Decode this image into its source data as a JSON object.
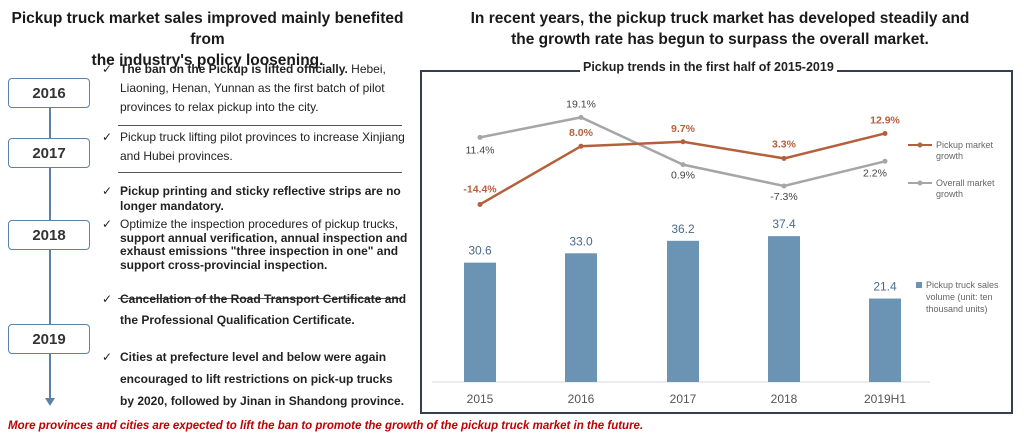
{
  "left_title": [
    "Pickup truck market sales improved mainly benefited from",
    "the industry's policy loosening."
  ],
  "right_title": [
    "In recent years, the pickup truck market has developed steadily and",
    "the growth rate has begun to surpass the overall market."
  ],
  "years": [
    "2016",
    "2017",
    "2018",
    "2019"
  ],
  "policies": [
    {
      "check": "✓",
      "bold": "The ban on the Pickup is lifted officially.",
      "rest": " Hebei, Liaoning, Henan, Yunnan as the first batch of pilot provinces to relax pickup into the city."
    },
    {
      "check": "✓",
      "bold": "",
      "rest": "Pickup truck lifting pilot provinces to increase Xinjiang and Hubei provinces."
    },
    {
      "check": "✓",
      "bold": "Pickup printing and sticky reflective strips are no longer mandatory.",
      "rest": ""
    },
    {
      "check": "✓",
      "bold": "",
      "rest": "Optimize the inspection procedures of pickup trucks, ",
      "bold2": "support annual verification, annual inspection and exhaust emissions \"three inspection in one\" and support cross-provincial inspection."
    },
    {
      "check": "✓",
      "bold": "Cancellation of the Road Transport Certificate and the Professional Qualification Certificate.",
      "rest": ""
    },
    {
      "check": "✓",
      "bold": "Cities at prefecture level and below were again encouraged to lift restrictions on pick-up trucks by 2020, followed by Jinan in Shandong province.",
      "rest": ""
    }
  ],
  "footnote": "More provinces and cities are expected to lift the ban to promote the growth of the pickup truck market in the future.",
  "colors": {
    "bar": "#6b93b3",
    "pickup_line": "#b5603d",
    "overall_line": "#a6a6a6",
    "frame": "#333f50",
    "timeline": "#5b82a6",
    "footnote": "#c00000"
  },
  "chart_data": {
    "type": "bar",
    "title": "Pickup trends in the first half of 2015-2019",
    "categories": [
      "2015",
      "2016",
      "2017",
      "2018",
      "2019H1"
    ],
    "series": [
      {
        "name": "Pickup truck sales volume (unit: ten thousand units)",
        "type": "bar",
        "values": [
          30.6,
          33.0,
          36.2,
          37.4,
          21.4
        ],
        "labels": [
          "30.6",
          "33.0",
          "36.2",
          "37.4",
          "21.4"
        ]
      },
      {
        "name": "Pickup market growth",
        "type": "line",
        "values": [
          -14.4,
          8.0,
          9.7,
          3.3,
          12.9
        ],
        "labels": [
          "-14.4%",
          "8.0%",
          "9.7%",
          "3.3%",
          "12.9%"
        ]
      },
      {
        "name": "Overall market growth",
        "type": "line",
        "values": [
          11.4,
          19.1,
          0.9,
          -7.3,
          2.2
        ],
        "labels": [
          "11.4%",
          "19.1%",
          "0.9%",
          "-7.3%",
          "2.2%"
        ]
      }
    ],
    "legend": [
      "Pickup market growth",
      "Overall market growth",
      "Pickup truck sales volume (unit: ten thousand units)"
    ],
    "legend_position": "right",
    "grid": false
  }
}
